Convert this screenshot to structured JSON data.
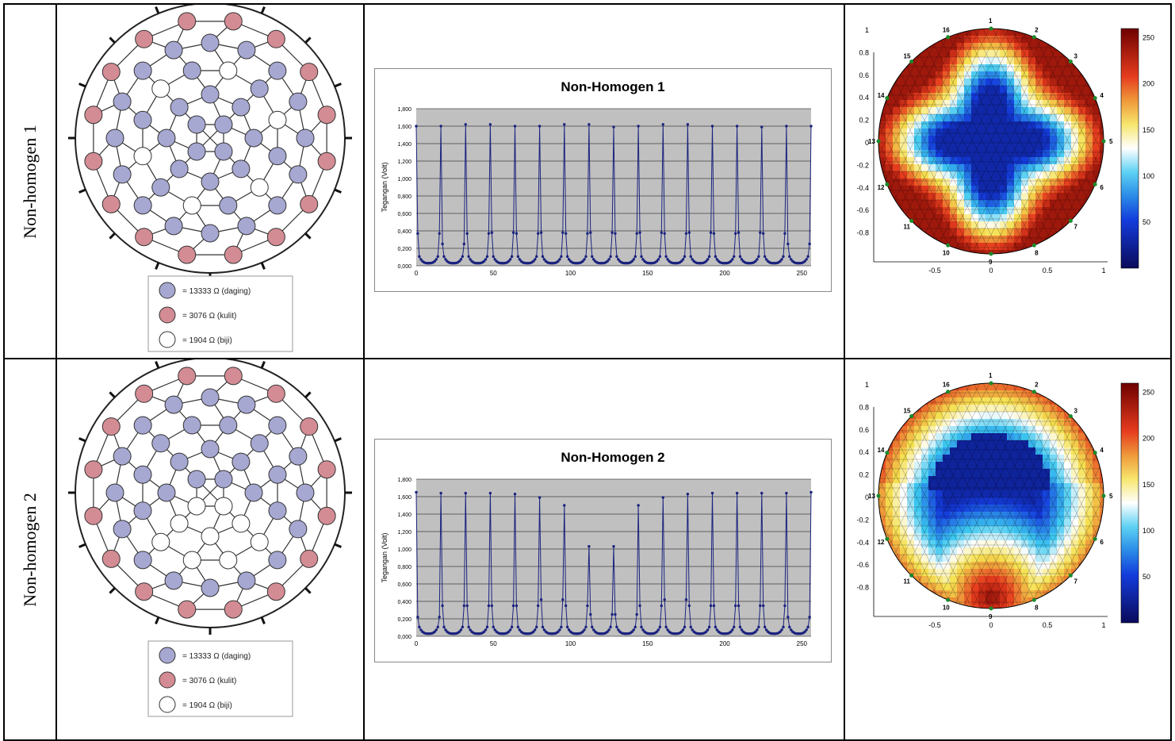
{
  "rows": [
    {
      "label": "Non-homogen 1",
      "legend": [
        {
          "text": "= 13333 Ω (daging)",
          "color": "#a6a8d2"
        },
        {
          "text": "= 3076 Ω (kulit)",
          "color": "#d48c94"
        },
        {
          "text": "= 1904 Ω (biji)",
          "color": "#ffffff"
        }
      ],
      "chart_title": "Non-Homogen 1",
      "map_labels": {
        "y_ticks": [
          "1",
          "0.8",
          "0.6",
          "0.4",
          "0.2",
          "0",
          "-0.2",
          "-0.4",
          "-0.6",
          "-0.8"
        ],
        "x_ticks": [
          "-0.5",
          "0",
          "0.5",
          "1"
        ],
        "electrodes": [
          "1",
          "2",
          "3",
          "4",
          "5",
          "6",
          "7",
          "8",
          "9",
          "10",
          "11",
          "12",
          "13",
          "14",
          "15",
          "16"
        ],
        "colorbar_ticks": [
          "250",
          "200",
          "150",
          "100",
          "50"
        ]
      }
    },
    {
      "label": "Non-homogen 2",
      "legend": [
        {
          "text": "= 13333 Ω (daging)",
          "color": "#a6a8d2"
        },
        {
          "text": "= 3076 Ω (kulit)",
          "color": "#d48c94"
        },
        {
          "text": "= 1904 Ω (biji)",
          "color": "#ffffff"
        }
      ],
      "chart_title": "Non-Homogen 2",
      "map_labels": {
        "y_ticks": [
          "1",
          "0.8",
          "0.6",
          "0.4",
          "0.2",
          "0",
          "-0.2",
          "-0.4",
          "-0.6",
          "-0.8"
        ],
        "x_ticks": [
          "-0.5",
          "0",
          "0.5",
          "1"
        ],
        "electrodes": [
          "1",
          "2",
          "3",
          "4",
          "5",
          "6",
          "7",
          "8",
          "9",
          "10",
          "11",
          "12",
          "13",
          "14",
          "15",
          "16"
        ],
        "colorbar_ticks": [
          "250",
          "200",
          "150",
          "100",
          "50"
        ]
      }
    }
  ],
  "chart_data": [
    {
      "type": "line",
      "title": "Non-Homogen 1",
      "xlabel": "",
      "ylabel": "Tegangan (Volt)",
      "xlim": [
        0,
        256
      ],
      "ylim": [
        0,
        1.8
      ],
      "x_ticks": [
        "0",
        "50",
        "100",
        "150",
        "200",
        "250"
      ],
      "y_ticks": [
        "0,000",
        "0,200",
        "0,400",
        "0,600",
        "0,800",
        "1,000",
        "1,200",
        "1,400",
        "1,600",
        "1,800"
      ],
      "grid": true,
      "period": 16,
      "peaks": [
        1.6,
        1.6,
        1.62,
        1.62,
        1.6,
        1.6,
        1.62,
        1.62,
        1.59,
        1.6,
        1.62,
        1.62,
        1.6,
        1.6,
        1.59,
        1.6,
        1.6
      ],
      "side_values": [
        0.37,
        0.25,
        0.37,
        0.38,
        0.37,
        0.38,
        0.37,
        0.38,
        0.37,
        0.38,
        0.37,
        0.38,
        0.37,
        0.38,
        0.37,
        0.25
      ],
      "trough": 0.03
    },
    {
      "type": "line",
      "title": "Non-Homogen 2",
      "xlabel": "",
      "ylabel": "Tegangan (Volt)",
      "xlim": [
        0,
        256
      ],
      "ylim": [
        0,
        1.8
      ],
      "x_ticks": [
        "0",
        "50",
        "100",
        "150",
        "200",
        "250"
      ],
      "y_ticks": [
        "0,000",
        "0,200",
        "0,400",
        "0,600",
        "0,800",
        "1,000",
        "1,200",
        "1,400",
        "1,600",
        "1,800"
      ],
      "grid": true,
      "period": 16,
      "peaks": [
        1.65,
        1.64,
        1.64,
        1.64,
        1.63,
        1.59,
        1.5,
        1.03,
        1.03,
        1.5,
        1.59,
        1.63,
        1.64,
        1.64,
        1.64,
        1.64,
        1.65
      ],
      "side_values": [
        0.22,
        0.35,
        0.35,
        0.35,
        0.35,
        0.42,
        0.35,
        0.25,
        0.25,
        0.35,
        0.42,
        0.35,
        0.35,
        0.35,
        0.35,
        0.22
      ],
      "trough": 0.03
    }
  ]
}
